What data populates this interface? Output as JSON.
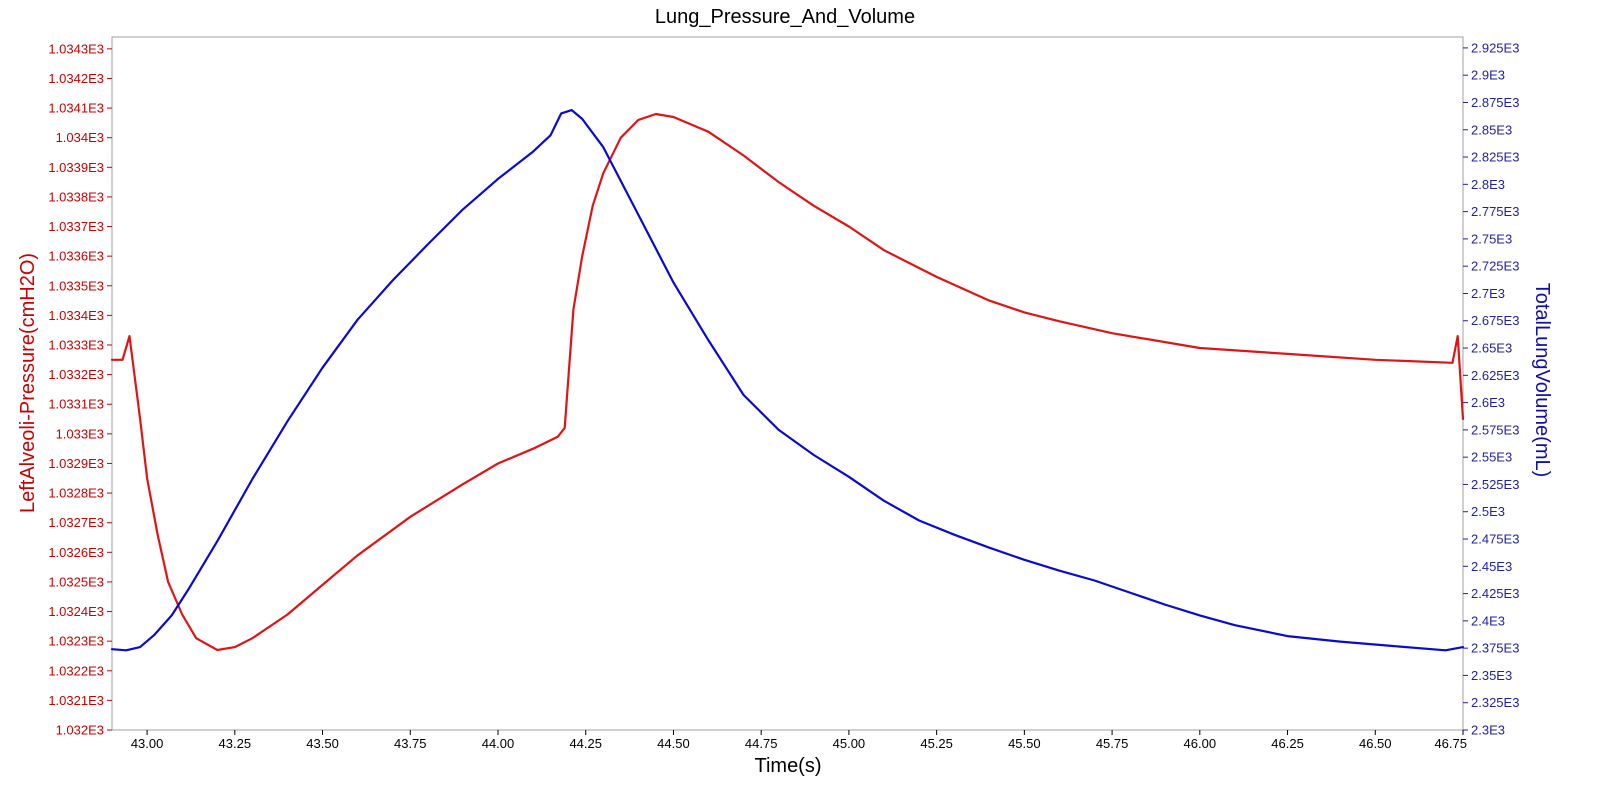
{
  "chart_data": {
    "type": "line",
    "title": "Lung_Pressure_And_Volume",
    "xlabel": "Time(s)",
    "ylabel_left": "LeftAlveoli-Pressure(cmH2O)",
    "ylabel_right": "TotalLungVolume(mL)",
    "xlim": [
      42.9,
      46.75
    ],
    "ylim_left": [
      1032.0,
      1034.34
    ],
    "ylim_right": [
      2300,
      2935
    ],
    "x_ticks": [
      "43.00",
      "43.25",
      "43.50",
      "43.75",
      "44.00",
      "44.25",
      "44.50",
      "44.75",
      "45.00",
      "45.25",
      "45.50",
      "45.75",
      "46.00",
      "46.25",
      "46.50",
      "46.75"
    ],
    "x_tick_values": [
      43.0,
      43.25,
      43.5,
      43.75,
      44.0,
      44.25,
      44.5,
      44.75,
      45.0,
      45.25,
      45.5,
      45.75,
      46.0,
      46.25,
      46.5,
      46.75
    ],
    "left_ticks": [
      "1.032E3",
      "1.0321E3",
      "1.0322E3",
      "1.0323E3",
      "1.0324E3",
      "1.0325E3",
      "1.0326E3",
      "1.0327E3",
      "1.0328E3",
      "1.0329E3",
      "1.033E3",
      "1.0331E3",
      "1.0332E3",
      "1.0333E3",
      "1.0334E3",
      "1.0335E3",
      "1.0336E3",
      "1.0337E3",
      "1.0338E3",
      "1.0339E3",
      "1.034E3",
      "1.0341E3",
      "1.0342E3",
      "1.0343E3"
    ],
    "left_tick_values": [
      1032.0,
      1032.1,
      1032.2,
      1032.3,
      1032.4,
      1032.5,
      1032.6,
      1032.7,
      1032.8,
      1032.9,
      1033.0,
      1033.1,
      1033.2,
      1033.3,
      1033.4,
      1033.5,
      1033.6,
      1033.7,
      1033.8,
      1033.9,
      1034.0,
      1034.1,
      1034.2,
      1034.3
    ],
    "right_ticks": [
      "2.3E3",
      "2.325E3",
      "2.35E3",
      "2.375E3",
      "2.4E3",
      "2.425E3",
      "2.45E3",
      "2.475E3",
      "2.5E3",
      "2.525E3",
      "2.55E3",
      "2.575E3",
      "2.6E3",
      "2.625E3",
      "2.65E3",
      "2.675E3",
      "2.7E3",
      "2.725E3",
      "2.75E3",
      "2.775E3",
      "2.8E3",
      "2.825E3",
      "2.85E3",
      "2.875E3",
      "2.9E3",
      "2.925E3"
    ],
    "right_tick_values": [
      2300,
      2325,
      2350,
      2375,
      2400,
      2425,
      2450,
      2475,
      2500,
      2525,
      2550,
      2575,
      2600,
      2625,
      2650,
      2675,
      2700,
      2725,
      2750,
      2775,
      2800,
      2825,
      2850,
      2875,
      2900,
      2925
    ],
    "grid": false,
    "legend": "none",
    "series": [
      {
        "axis": "left",
        "color": "#e01414",
        "points": [
          [
            42.9,
            1033.25
          ],
          [
            42.93,
            1033.25
          ],
          [
            42.95,
            1033.33
          ],
          [
            42.98,
            1033.05
          ],
          [
            43.0,
            1032.85
          ],
          [
            43.03,
            1032.66
          ],
          [
            43.06,
            1032.5
          ],
          [
            43.1,
            1032.39
          ],
          [
            43.14,
            1032.31
          ],
          [
            43.2,
            1032.27
          ],
          [
            43.25,
            1032.28
          ],
          [
            43.3,
            1032.31
          ],
          [
            43.4,
            1032.39
          ],
          [
            43.5,
            1032.49
          ],
          [
            43.6,
            1032.59
          ],
          [
            43.75,
            1032.72
          ],
          [
            43.9,
            1032.83
          ],
          [
            44.0,
            1032.9
          ],
          [
            44.1,
            1032.95
          ],
          [
            44.17,
            1032.99
          ],
          [
            44.19,
            1033.02
          ],
          [
            44.215,
            1033.42
          ],
          [
            44.24,
            1033.6
          ],
          [
            44.27,
            1033.77
          ],
          [
            44.3,
            1033.88
          ],
          [
            44.35,
            1034.0
          ],
          [
            44.4,
            1034.06
          ],
          [
            44.45,
            1034.08
          ],
          [
            44.5,
            1034.07
          ],
          [
            44.6,
            1034.02
          ],
          [
            44.7,
            1033.94
          ],
          [
            44.8,
            1033.85
          ],
          [
            44.9,
            1033.77
          ],
          [
            45.0,
            1033.7
          ],
          [
            45.1,
            1033.62
          ],
          [
            45.25,
            1033.53
          ],
          [
            45.4,
            1033.45
          ],
          [
            45.5,
            1033.41
          ],
          [
            45.6,
            1033.38
          ],
          [
            45.75,
            1033.34
          ],
          [
            46.0,
            1033.29
          ],
          [
            46.25,
            1033.27
          ],
          [
            46.5,
            1033.25
          ],
          [
            46.72,
            1033.24
          ],
          [
            46.735,
            1033.33
          ],
          [
            46.75,
            1033.05
          ]
        ]
      },
      {
        "axis": "right",
        "color": "#0a0ad2",
        "points": [
          [
            42.9,
            2374
          ],
          [
            42.94,
            2373
          ],
          [
            42.98,
            2376
          ],
          [
            43.02,
            2387
          ],
          [
            43.07,
            2405
          ],
          [
            43.12,
            2430
          ],
          [
            43.2,
            2473
          ],
          [
            43.3,
            2530
          ],
          [
            43.4,
            2583
          ],
          [
            43.5,
            2632
          ],
          [
            43.6,
            2676
          ],
          [
            43.7,
            2712
          ],
          [
            43.8,
            2745
          ],
          [
            43.9,
            2777
          ],
          [
            44.0,
            2805
          ],
          [
            44.1,
            2830
          ],
          [
            44.15,
            2845
          ],
          [
            44.18,
            2865
          ],
          [
            44.21,
            2868
          ],
          [
            44.24,
            2860
          ],
          [
            44.3,
            2834
          ],
          [
            44.4,
            2772
          ],
          [
            44.5,
            2710
          ],
          [
            44.6,
            2657
          ],
          [
            44.7,
            2607
          ],
          [
            44.8,
            2575
          ],
          [
            44.9,
            2552
          ],
          [
            45.0,
            2532
          ],
          [
            45.1,
            2510
          ],
          [
            45.2,
            2492
          ],
          [
            45.3,
            2479
          ],
          [
            45.4,
            2467
          ],
          [
            45.5,
            2456
          ],
          [
            45.6,
            2446
          ],
          [
            45.7,
            2437
          ],
          [
            45.8,
            2426
          ],
          [
            45.9,
            2415
          ],
          [
            46.0,
            2405
          ],
          [
            46.1,
            2396
          ],
          [
            46.25,
            2386
          ],
          [
            46.4,
            2381
          ],
          [
            46.55,
            2377
          ],
          [
            46.7,
            2373
          ],
          [
            46.75,
            2376
          ]
        ]
      }
    ]
  }
}
